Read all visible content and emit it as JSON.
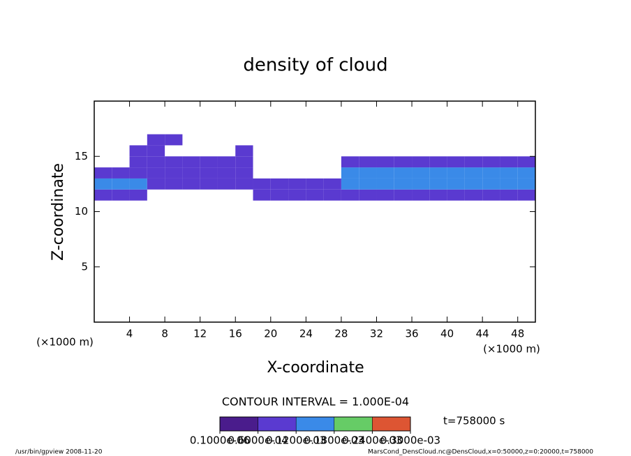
{
  "chart_data": {
    "type": "heatmap",
    "title": "density of cloud",
    "x_label": "X-coordinate",
    "y_label": "Z-coordinate",
    "x_unit": "(×1000 m)",
    "y_unit": "(×1000 m)",
    "xlim": [
      0,
      50
    ],
    "ylim": [
      0,
      20
    ],
    "xticks": [
      4,
      8,
      12,
      16,
      20,
      24,
      28,
      32,
      36,
      40,
      44,
      48
    ],
    "yticks": [
      5,
      10,
      15
    ],
    "xbins": [
      0,
      2,
      4,
      6,
      8,
      10,
      12,
      14,
      16,
      18,
      20,
      22,
      24,
      26,
      28,
      30,
      32,
      34,
      36,
      38,
      40,
      42,
      44,
      46,
      48,
      50
    ],
    "ybins": [
      11,
      12,
      13,
      14,
      15,
      16,
      17
    ],
    "z": [
      [
        8e-05,
        8e-05,
        8e-05,
        null,
        null,
        null,
        null,
        null,
        null,
        7e-05,
        7e-05,
        7e-05,
        7e-05,
        7e-05,
        8e-05,
        8e-05,
        8e-05,
        8e-05,
        8e-05,
        8e-05,
        8e-05,
        8e-05,
        8e-05,
        8e-05,
        8e-05
      ],
      [
        0.00012,
        0.00012,
        0.00012,
        9e-05,
        9e-05,
        9e-05,
        9e-05,
        9e-05,
        9e-05,
        8e-05,
        8e-05,
        8e-05,
        8e-05,
        8e-05,
        0.00012,
        0.00012,
        0.00012,
        0.00012,
        0.00012,
        0.00012,
        0.00012,
        0.00012,
        0.00015,
        0.00015,
        0.00012
      ],
      [
        0.0001,
        0.0001,
        0.0001,
        0.00011,
        0.00011,
        0.00011,
        0.00011,
        0.00011,
        0.00011,
        null,
        null,
        null,
        null,
        null,
        0.00013,
        0.00013,
        0.00013,
        0.00013,
        0.00013,
        0.00013,
        0.00013,
        0.00013,
        0.00013,
        0.00013,
        0.00013
      ],
      [
        null,
        null,
        8e-05,
        8e-05,
        8e-05,
        9e-05,
        9e-05,
        9e-05,
        8e-05,
        null,
        null,
        null,
        null,
        null,
        7e-05,
        7e-05,
        7e-05,
        7e-05,
        7e-05,
        7e-05,
        7e-05,
        7e-05,
        7e-05,
        7e-05,
        7e-05
      ],
      [
        null,
        null,
        7e-05,
        7e-05,
        null,
        null,
        null,
        null,
        7e-05,
        null,
        null,
        null,
        null,
        null,
        null,
        null,
        null,
        null,
        null,
        null,
        null,
        null,
        null,
        null,
        null
      ],
      [
        null,
        null,
        null,
        8e-05,
        8e-05,
        null,
        null,
        null,
        null,
        null,
        null,
        null,
        null,
        null,
        null,
        null,
        null,
        null,
        null,
        null,
        null,
        null,
        null,
        null,
        null
      ]
    ],
    "colorbar_ticks": [
      {
        "value": 1e-07,
        "label": "0.1000e-06"
      },
      {
        "value": 6e-05,
        "label": "0.6000e-04"
      },
      {
        "value": 0.00012,
        "label": "0.1200e-03"
      },
      {
        "value": 0.00018,
        "label": "0.1800e-03"
      },
      {
        "value": 0.00024,
        "label": "0.2400e-03"
      },
      {
        "value": 0.0003,
        "label": "0.3000e-03"
      }
    ],
    "colorbar_colors": [
      "#4a1c8c",
      "#5a3ad0",
      "#3a8ae8",
      "#66cc66",
      "#dd5533"
    ],
    "contour_interval": "CONTOUR INTERVAL = 1.000E-04",
    "time_label": "t=758000 s",
    "footer_left": "/usr/bin/gpview  2008-11-20",
    "footer_right": "MarsCond_DensCloud.nc@DensCloud,x=0:50000,z=0:20000,t=758000"
  }
}
